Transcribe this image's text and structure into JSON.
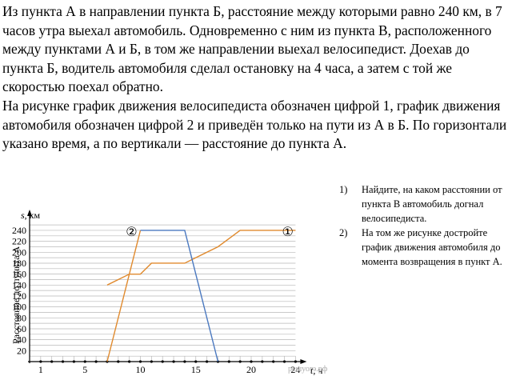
{
  "problem": {
    "paragraph1": "Из пункта А в направлении пункта Б, расстояние между которыми равно 240 км, в 7 часов утра выехал автомобиль. Одновременно с ним из пункта В, расположенного между пунктами А и Б, в том же направлении выехал велосипедист. Доехав до пункта Б, водитель автомобиля сделал остановку на 4 часа, а затем с той же скоростью поехал обратно.",
    "paragraph2": "На рисунке график движения велосипедиста обозначен цифрой 1, график движения автомобиля обозначен цифрой 2 и приведён только на пути из А в Б. По горизонтали указано время, а по вертикали — расстояние до пункта А."
  },
  "tasks": [
    {
      "number": "1)",
      "text": "Найдите, на каком расстоянии от пункта В автомобиль догнал велосипедиста."
    },
    {
      "number": "2)",
      "text": "На том же рисунке достройте график движения автомобиля до момента возвращения в пункт А."
    }
  ],
  "chart_data": {
    "type": "line",
    "ylabel_symbol": "s",
    "ylabel_unit": ", км",
    "y_axis_side_label": "Расстояние до пункта А",
    "xlabel_symbol": "t",
    "xlabel_unit": ", ч",
    "watermark": "решуогэ.рф",
    "xlim": [
      0,
      24
    ],
    "ylim": [
      0,
      250
    ],
    "x_ticks": [
      1,
      5,
      10,
      15,
      20,
      24
    ],
    "y_ticks": [
      20,
      40,
      60,
      80,
      100,
      120,
      140,
      160,
      180,
      200,
      220,
      240
    ],
    "grid": true,
    "series": [
      {
        "name": "①",
        "color": "#E08A2E",
        "x": [
          7,
          9,
          10,
          11,
          13,
          14,
          17,
          19,
          21,
          24
        ],
        "y": [
          140,
          160,
          160,
          180,
          180,
          180,
          210,
          240,
          240,
          240
        ]
      },
      {
        "name": "②",
        "color": "#E08A2E",
        "x": [
          7,
          10
        ],
        "y": [
          0,
          240
        ]
      },
      {
        "name": "",
        "color": "#4A78BF",
        "x": [
          10,
          14,
          17
        ],
        "y": [
          240,
          240,
          0
        ]
      }
    ]
  }
}
